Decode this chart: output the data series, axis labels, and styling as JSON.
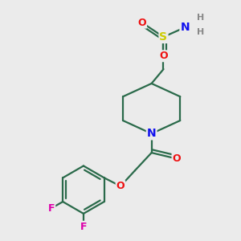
{
  "background_color": "#ebebeb",
  "bond_color": "#2a6a4a",
  "atom_colors": {
    "N": "#1010ee",
    "O": "#ee1010",
    "S": "#cccc00",
    "F": "#dd00aa",
    "H": "#888888",
    "C": "#2a6a4a"
  },
  "figsize": [
    3.0,
    3.0
  ],
  "dpi": 100,
  "lw": 1.6
}
